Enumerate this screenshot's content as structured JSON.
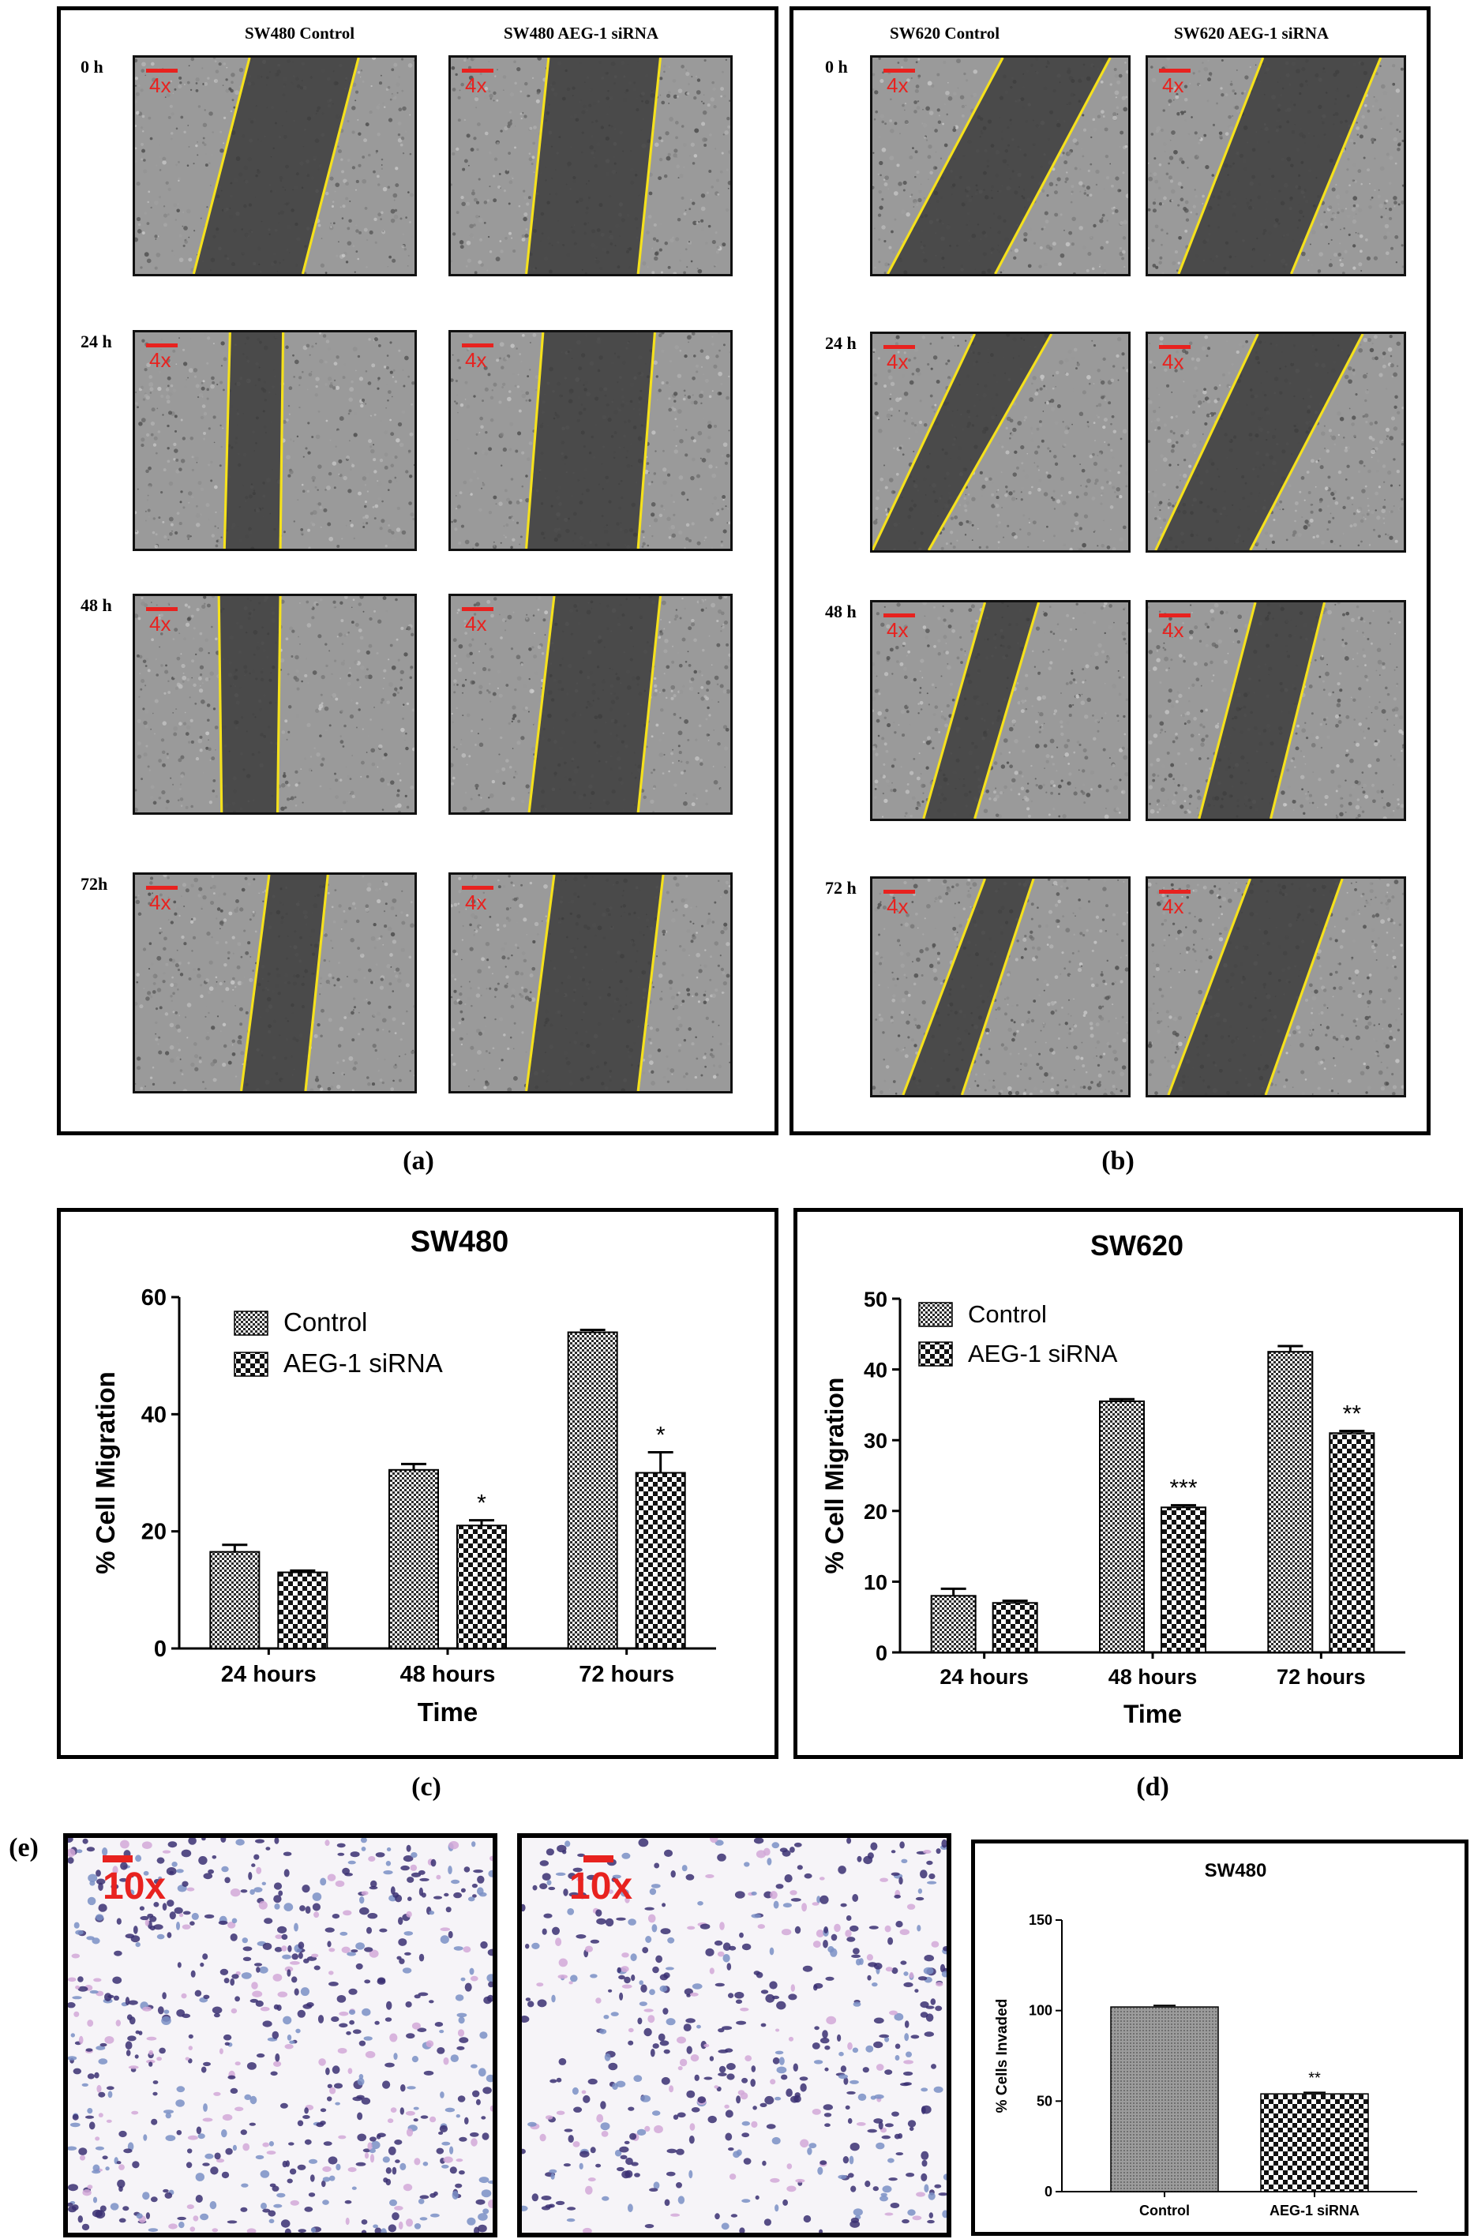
{
  "panel_a": {
    "letter": "(a)",
    "columns": [
      "SW480 Control",
      "SW480 AEG-1 siRNA"
    ],
    "rows": [
      "0 h",
      "24 h",
      "48 h",
      "72h"
    ],
    "magnification": "4x"
  },
  "panel_b": {
    "letter": "(b)",
    "columns": [
      "SW620 Control",
      "SW620 AEG-1 siRNA"
    ],
    "rows": [
      "0 h",
      "24 h",
      "48 h",
      "72 h"
    ],
    "magnification": "4x"
  },
  "panel_c_letter": "(c)",
  "panel_d_letter": "(d)",
  "panel_e": {
    "letter": "(e)",
    "magnification": "10x"
  },
  "colors": {
    "wound_line": "#f5e11c",
    "scale_bar": "#e8221f",
    "frame": "#000000"
  },
  "chart_data": [
    {
      "type": "bar",
      "title": "SW480",
      "xlabel": "Time",
      "ylabel": "% Cell Migration",
      "categories": [
        "24 hours",
        "48 hours",
        "72 hours"
      ],
      "ylim": [
        0,
        60
      ],
      "yticks": [
        0,
        20,
        40,
        60
      ],
      "legend_position": "top-left",
      "series": [
        {
          "name": "Control",
          "values": [
            16.5,
            30.5,
            54
          ],
          "errors": [
            1.2,
            1.0,
            0.4
          ],
          "pattern": "fine-check"
        },
        {
          "name": "AEG-1 siRNA",
          "values": [
            13,
            21,
            30
          ],
          "errors": [
            0.3,
            0.9,
            3.5
          ],
          "pattern": "coarse-check"
        }
      ],
      "annotations": [
        {
          "category": "48 hours",
          "series": "AEG-1 siRNA",
          "text": "*"
        },
        {
          "category": "72 hours",
          "series": "AEG-1 siRNA",
          "text": "*"
        }
      ]
    },
    {
      "type": "bar",
      "title": "SW620",
      "xlabel": "Time",
      "ylabel": "% Cell Migration",
      "categories": [
        "24 hours",
        "48 hours",
        "72 hours"
      ],
      "ylim": [
        0,
        50
      ],
      "yticks": [
        0,
        10,
        20,
        30,
        40,
        50
      ],
      "legend_position": "top-left",
      "series": [
        {
          "name": "Control",
          "values": [
            8,
            35.5,
            42.5
          ],
          "errors": [
            1.0,
            0.3,
            0.8
          ],
          "pattern": "fine-check"
        },
        {
          "name": "AEG-1 siRNA",
          "values": [
            7,
            20.5,
            31
          ],
          "errors": [
            0.3,
            0.3,
            0.3
          ],
          "pattern": "coarse-check"
        }
      ],
      "annotations": [
        {
          "category": "48 hours",
          "series": "AEG-1 siRNA",
          "text": "***"
        },
        {
          "category": "72 hours",
          "series": "AEG-1 siRNA",
          "text": "**"
        }
      ]
    },
    {
      "type": "bar",
      "title": "SW480",
      "xlabel": "",
      "ylabel": "% Cells Invaded",
      "categories": [
        "Control",
        "AEG-1 siRNA"
      ],
      "ylim": [
        0,
        150
      ],
      "yticks": [
        0,
        50,
        100,
        150
      ],
      "series": [
        {
          "values": [
            102,
            54
          ],
          "errors": [
            0.8,
            0.8
          ]
        }
      ],
      "annotations": [
        {
          "category": "AEG-1 siRNA",
          "text": "**"
        }
      ]
    }
  ]
}
